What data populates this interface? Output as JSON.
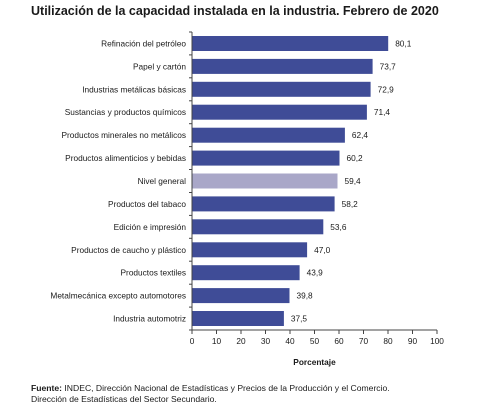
{
  "chart_data": {
    "type": "bar",
    "orientation": "horizontal",
    "title": "Utilización de la capacidad instalada en la industria. Febrero de 2020",
    "xlabel": "Porcentaje",
    "ylabel": "",
    "xlim": [
      0,
      100
    ],
    "ticks": [
      "0",
      "10",
      "20",
      "30",
      "40",
      "50",
      "60",
      "70",
      "80",
      "90",
      "100"
    ],
    "grid": false,
    "categories": [
      "Refinación del petróleo",
      "Papel y cartón",
      "Industrias metálicas básicas",
      "Sustancias y productos químicos",
      "Productos minerales no metálicos",
      "Productos alimenticios y bebidas",
      "Nivel general",
      "Productos del tabaco",
      "Edición e impresión",
      "Productos de caucho y plástico",
      "Productos textiles",
      "Metalmecánica excepto automotores",
      "Industria automotriz"
    ],
    "values": [
      80.1,
      73.7,
      72.9,
      71.4,
      62.4,
      60.2,
      59.4,
      58.2,
      53.6,
      47.0,
      43.9,
      39.8,
      37.5
    ],
    "value_labels": [
      "80,1",
      "73,7",
      "72,9",
      "71,4",
      "62,4",
      "60,2",
      "59,4",
      "58,2",
      "53,6",
      "47,0",
      "43,9",
      "39,8",
      "37,5"
    ],
    "highlight_category": "Nivel general",
    "colors": {
      "bar": "#3f4c97",
      "highlight": "#a9a7c8",
      "axis": "#444444"
    }
  },
  "source": {
    "label": "Fuente:",
    "line1": " INDEC, Dirección Nacional de Estadísticas y Precios de la Producción y el Comercio.",
    "line2": "Dirección de Estadísticas del Sector Secundario."
  }
}
